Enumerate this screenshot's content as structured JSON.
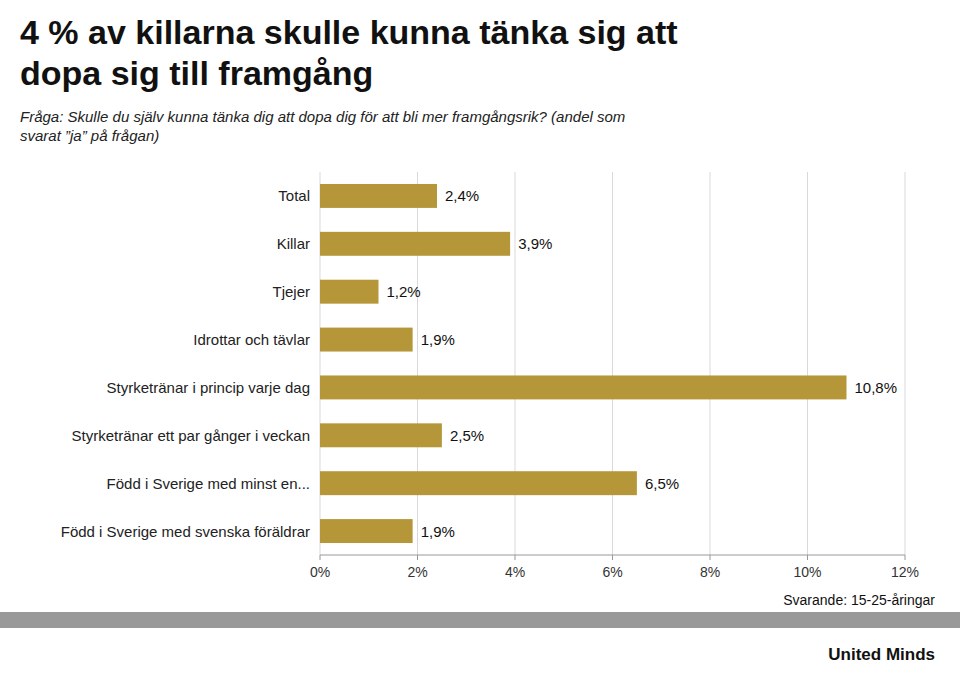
{
  "chart_data": {
    "type": "bar",
    "orientation": "horizontal",
    "title": "4 % av killarna skulle kunna tänka sig att\ndopa sig till framgång",
    "subtitle": "Fråga: Skulle du själv kunna tänka dig att dopa dig för att bli mer framgångsrik? (andel som\nsvarat ”ja” på frågan)",
    "categories": [
      "Total",
      "Killar",
      "Tjejer",
      "Idrottar och tävlar",
      "Styrketränar i princip varje dag",
      "Styrketränar ett par gånger i veckan",
      "Född i Sverige med minst en...",
      "Född i Sverige med svenska föräldrar"
    ],
    "values": [
      2.4,
      3.9,
      1.2,
      1.9,
      10.8,
      2.5,
      6.5,
      1.9
    ],
    "value_labels": [
      "2,4%",
      "3,9%",
      "1,2%",
      "1,9%",
      "10,8%",
      "2,5%",
      "6,5%",
      "1,9%"
    ],
    "data_labels": true,
    "color": "#B5973A",
    "xlim": [
      0,
      12
    ],
    "xticks": [
      {
        "value": 0,
        "label": "0%"
      },
      {
        "value": 2,
        "label": "2%"
      },
      {
        "value": 4,
        "label": "4%"
      },
      {
        "value": 6,
        "label": "6%"
      },
      {
        "value": 8,
        "label": "8%"
      },
      {
        "value": 10,
        "label": "10%"
      },
      {
        "value": 12,
        "label": "12%"
      }
    ],
    "grid": true,
    "annotations": [
      "Svarande: 15-25-åringar",
      "United Minds"
    ]
  }
}
